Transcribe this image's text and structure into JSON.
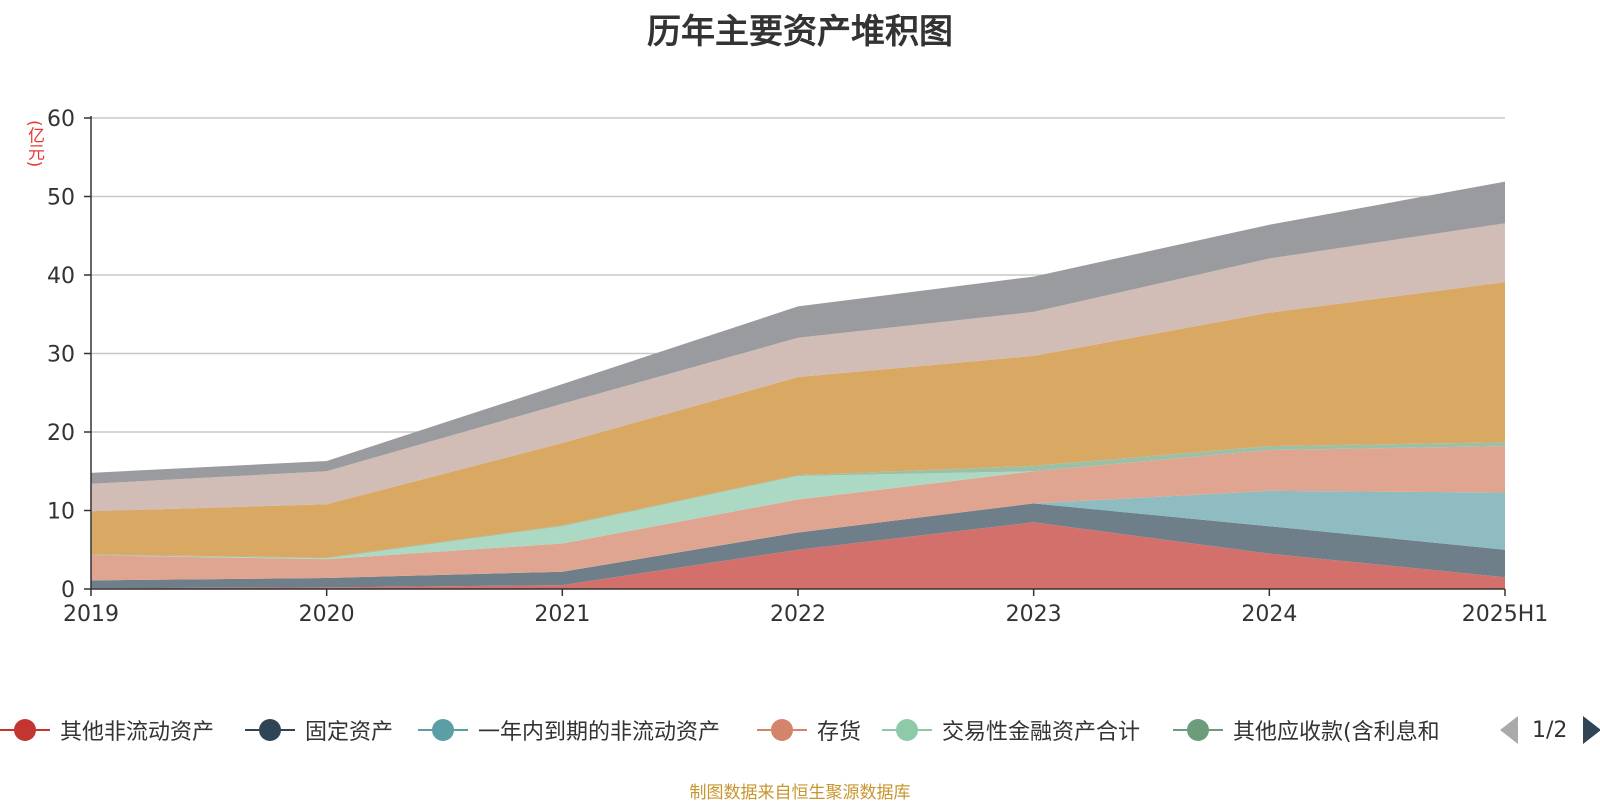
{
  "title": "历年主要资产堆积图",
  "unit_label": "(亿元)",
  "source": "制图数据来自恒生聚源数据库",
  "pager": {
    "text": "1/2"
  },
  "legend": [
    {
      "label": "其他非流动资产",
      "color": "#c23531"
    },
    {
      "label": "固定资产",
      "color": "#2f4454"
    },
    {
      "label": "一年内到期的非流动资产",
      "color": "#5b9ea6"
    },
    {
      "label": "存货",
      "color": "#d4846a"
    },
    {
      "label": "交易性金融资产合计",
      "color": "#8dcaa8"
    },
    {
      "label": "其他应收款(含利息和",
      "color": "#6d9c7b"
    }
  ],
  "chart_data": {
    "type": "area",
    "stacked": true,
    "title": "历年主要资产堆积图",
    "ylabel": "(亿元)",
    "ylim": [
      0,
      60
    ],
    "yticks": [
      0,
      10,
      20,
      30,
      40,
      50,
      60
    ],
    "grid": true,
    "legend_position": "bottom",
    "categories": [
      "2019",
      "2020",
      "2021",
      "2022",
      "2023",
      "2024",
      "2025H1"
    ],
    "series": [
      {
        "name": "其他非流动资产",
        "color": "#d4706c",
        "values": [
          0.1,
          0.2,
          0.5,
          5.0,
          8.5,
          4.5,
          1.5
        ]
      },
      {
        "name": "固定资产",
        "color": "#6e7f8a",
        "values": [
          1.0,
          1.2,
          1.7,
          2.2,
          2.4,
          3.5,
          3.5
        ]
      },
      {
        "name": "一年内到期的非流动资产",
        "color": "#8ebcc1",
        "values": [
          0,
          0,
          0,
          0,
          0,
          4.5,
          7.3
        ]
      },
      {
        "name": "存货",
        "color": "#e0a590",
        "values": [
          3.2,
          2.4,
          3.6,
          4.2,
          4.1,
          5.2,
          5.9
        ]
      },
      {
        "name": "交易性金融资产合计",
        "color": "#acd9c3",
        "values": [
          0,
          0.1,
          2.2,
          3.0,
          0,
          0,
          0
        ]
      },
      {
        "name": "其他应收款(含利息和",
        "color": "#9cbfa6",
        "values": [
          0.1,
          0.1,
          0.1,
          0.1,
          0.7,
          0.5,
          0.5
        ]
      },
      {
        "name": "",
        "color": "#d9a862",
        "values": [
          5.5,
          6.8,
          10.5,
          12.5,
          14.0,
          17.0,
          20.4
        ]
      },
      {
        "name": "",
        "color": "#d2bcb6",
        "values": [
          3.5,
          4.2,
          5.0,
          5.0,
          5.6,
          6.9,
          7.5
        ]
      },
      {
        "name": "",
        "color": "#9a9b9f",
        "values": [
          1.4,
          1.3,
          2.5,
          4.0,
          4.5,
          4.3,
          5.3
        ]
      }
    ]
  }
}
